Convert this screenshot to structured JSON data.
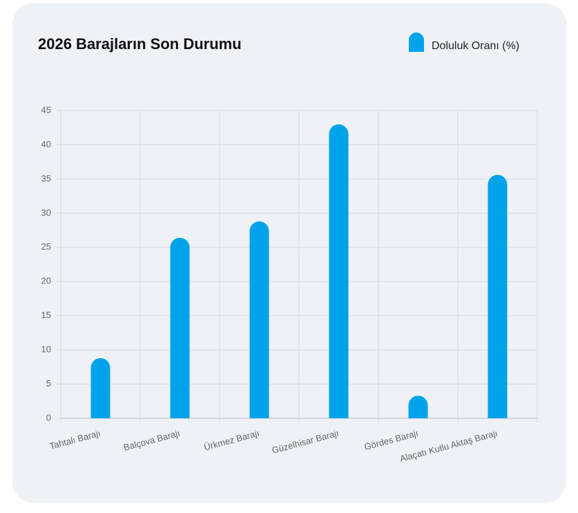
{
  "chart_data": {
    "type": "bar",
    "title": "2026 Barajların Son Durumu",
    "categories": [
      "Tahtalı Barajı",
      "Balçova Barajı",
      "Ürkmez Barajı",
      "Güzelhisar Barajı",
      "Gördes Barajı",
      "Alaçatı Kutlu Aktaş Barajı"
    ],
    "series": [
      {
        "name": "Doluluk Oranı (%)",
        "color": "#00a3ea",
        "values": [
          8.8,
          26.4,
          28.8,
          43.0,
          3.3,
          35.6
        ]
      }
    ],
    "ylim": [
      0,
      45
    ],
    "yticks": [
      0,
      5,
      10,
      15,
      20,
      25,
      30,
      35,
      40,
      45
    ],
    "grid": true,
    "legend": "top-right"
  }
}
